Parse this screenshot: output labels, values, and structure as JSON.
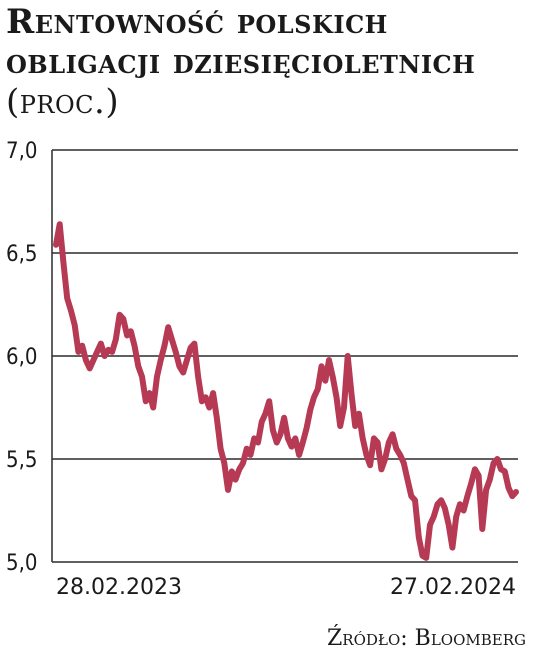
{
  "header": {
    "title": "Rentowność polskich obligacji dziesięcioletnich",
    "unit": "(proc.)"
  },
  "footer": {
    "source": "Źródło: Bloomberg"
  },
  "colors": {
    "line": "#B73A55",
    "grid": "#2b2b2b",
    "text": "#1a1a1a"
  },
  "chart_data": {
    "type": "line",
    "title": "Rentowność polskich obligacji dziesięcioletnich (proc.)",
    "xlabel": "",
    "ylabel": "",
    "ylim": [
      5.0,
      7.0
    ],
    "yticks": [
      7.0,
      6.5,
      6.0,
      5.5,
      5.0
    ],
    "ytick_labels": [
      "7,0",
      "6,5",
      "6,0",
      "5,5",
      "5,0"
    ],
    "xtick_labels": [
      "28.02.2023",
      "27.02.2024"
    ],
    "x_range": [
      "2023-02-28",
      "2024-02-27"
    ],
    "grid": true,
    "legend": "none",
    "series": [
      {
        "values": [
          6.54,
          6.64,
          6.45,
          6.28,
          6.22,
          6.15,
          6.02,
          6.05,
          5.98,
          5.94,
          5.98,
          6.02,
          6.06,
          6.0,
          6.03,
          6.02,
          6.08,
          6.2,
          6.18,
          6.1,
          6.12,
          6.05,
          5.95,
          5.9,
          5.78,
          5.82,
          5.75,
          5.9,
          5.98,
          6.05,
          6.14,
          6.08,
          6.02,
          5.95,
          5.92,
          5.98,
          6.04,
          6.06,
          5.9,
          5.78,
          5.8,
          5.75,
          5.82,
          5.7,
          5.55,
          5.48,
          5.35,
          5.44,
          5.4,
          5.45,
          5.48,
          5.55,
          5.52,
          5.6,
          5.58,
          5.68,
          5.72,
          5.78,
          5.64,
          5.58,
          5.62,
          5.7,
          5.6,
          5.56,
          5.6,
          5.52,
          5.58,
          5.65,
          5.74,
          5.8,
          5.84,
          5.95,
          5.88,
          5.98,
          5.9,
          5.8,
          5.66,
          5.75,
          6.0,
          5.82,
          5.66,
          5.72,
          5.6,
          5.52,
          5.47,
          5.6,
          5.58,
          5.45,
          5.5,
          5.58,
          5.62,
          5.55,
          5.52,
          5.48,
          5.4,
          5.32,
          5.3,
          5.12,
          5.03,
          5.02,
          5.18,
          5.22,
          5.28,
          5.3,
          5.26,
          5.18,
          5.07,
          5.22,
          5.28,
          5.25,
          5.32,
          5.38,
          5.45,
          5.42,
          5.16,
          5.35,
          5.4,
          5.48,
          5.5,
          5.45,
          5.44,
          5.36,
          5.32,
          5.34
        ]
      }
    ]
  }
}
